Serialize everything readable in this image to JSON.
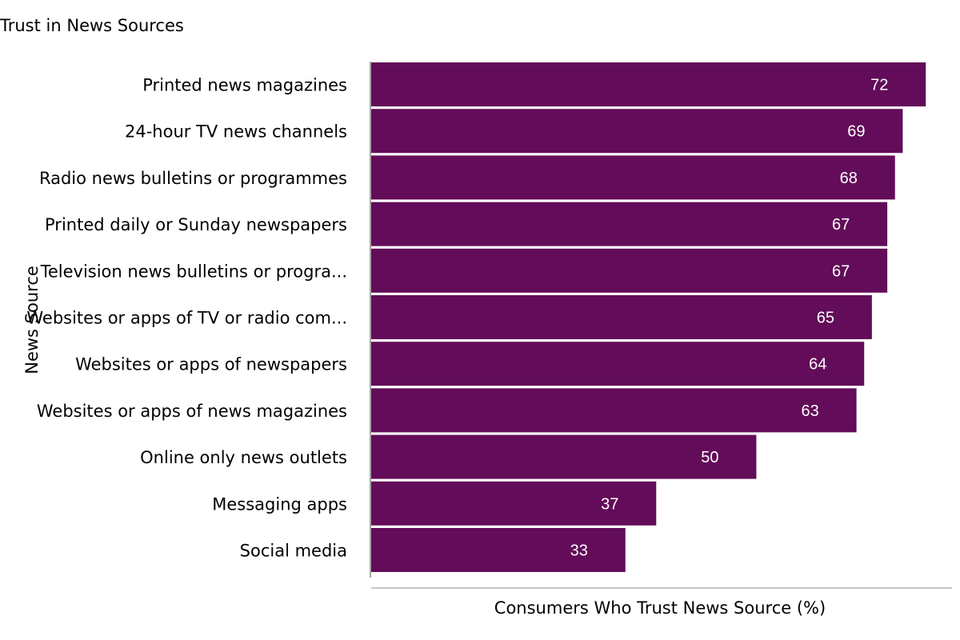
{
  "chart_data": {
    "type": "bar",
    "orientation": "horizontal",
    "title": "Trust in News Sources",
    "xlabel": "Consumers Who Trust News Source (%)",
    "ylabel": "News Source",
    "xlim": [
      0,
      75.4
    ],
    "grid": false,
    "bar_color": "#630c59",
    "categories": [
      "Printed news magazines",
      "24-hour TV news channels",
      "Radio news bulletins or programmes",
      "Printed daily or Sunday newspapers",
      "Television news bulletins or progra...",
      "Websites or apps of TV or radio com...",
      "Websites or apps of newspapers",
      "Websites or apps of news magazines",
      "Online only news outlets",
      "Messaging apps",
      "Social media"
    ],
    "values": [
      72,
      69,
      68,
      67,
      67,
      65,
      64,
      63,
      50,
      37,
      33
    ]
  }
}
